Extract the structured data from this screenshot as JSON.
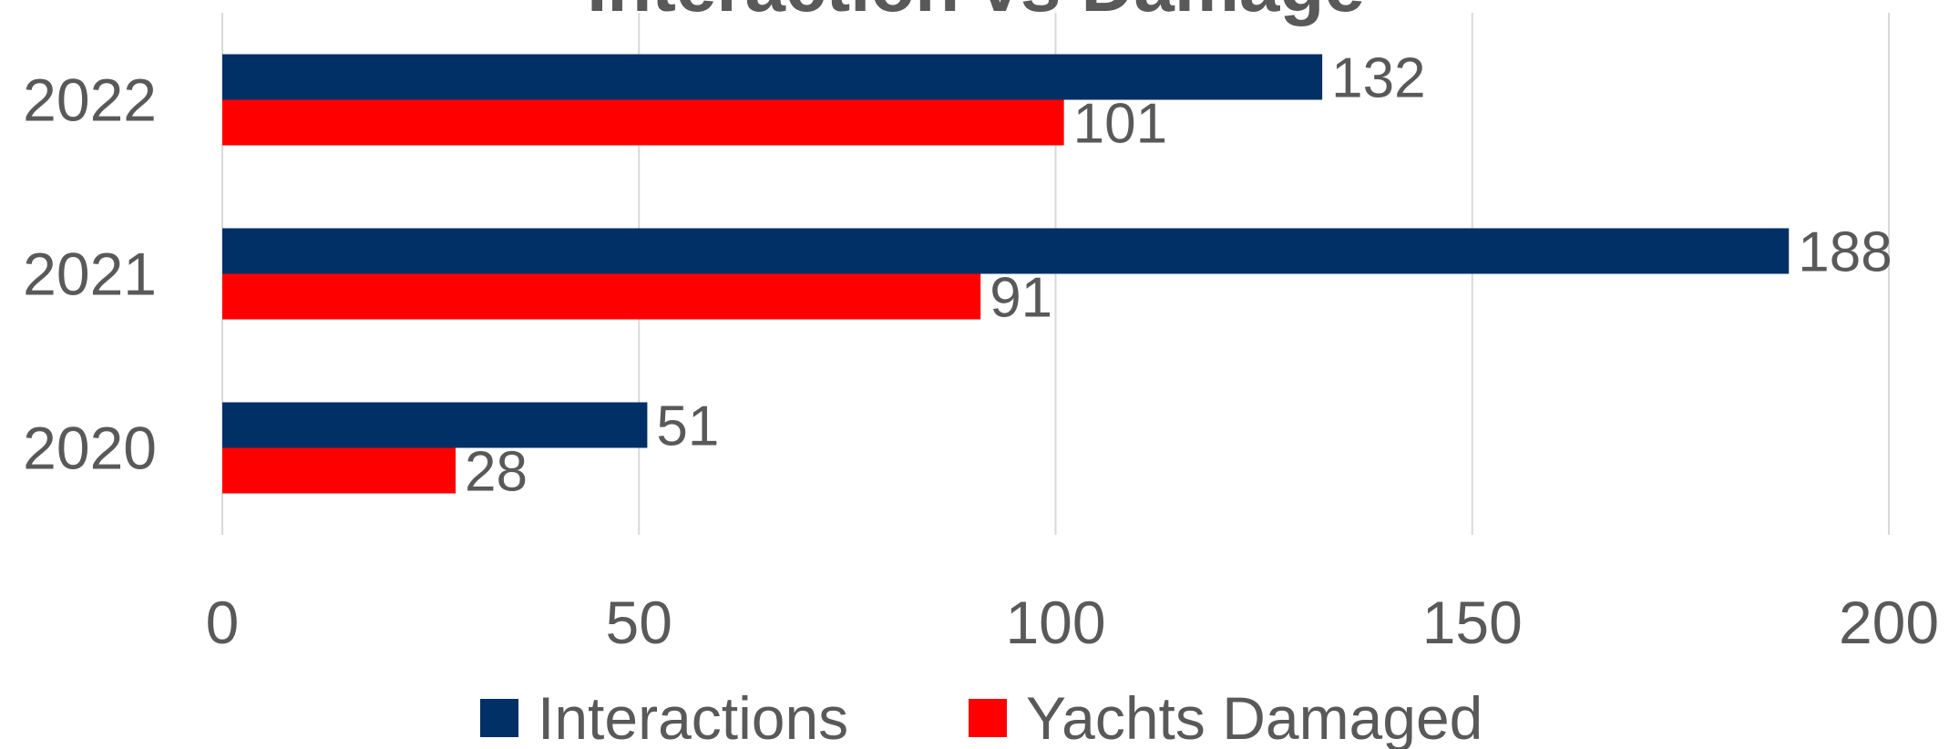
{
  "chart_data": {
    "type": "bar",
    "orientation": "horizontal",
    "title": "Interaction vs Damage",
    "categories": [
      "2020",
      "2021",
      "2022"
    ],
    "series": [
      {
        "name": "Interactions",
        "color": "#003066",
        "values": [
          51,
          188,
          132
        ]
      },
      {
        "name": "Yachts Damaged",
        "color": "#ff0000",
        "values": [
          28,
          91,
          101
        ]
      }
    ],
    "xlim": [
      0,
      200
    ],
    "xticks": [
      0,
      50,
      100,
      150,
      200
    ],
    "grid": true,
    "legend": "bottom"
  }
}
